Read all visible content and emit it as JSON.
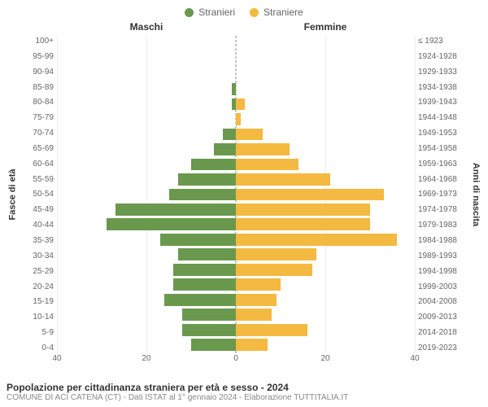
{
  "type": "population-pyramid",
  "legend": {
    "male": {
      "label": "Stranieri",
      "color": "#6a994e"
    },
    "female": {
      "label": "Straniere",
      "color": "#f4b940"
    }
  },
  "column_headers": {
    "left": "Maschi",
    "right": "Femmine"
  },
  "yaxis": {
    "left_title": "Fasce di età",
    "right_title": "Anni di nascita",
    "label_fontsize": 10,
    "title_fontsize": 11
  },
  "xaxis": {
    "max_abs": 40,
    "ticks": [
      40,
      20,
      0,
      20,
      40
    ],
    "label_fontsize": 10
  },
  "grid": {
    "color": "#f0eeee",
    "positions_pct": [
      0,
      25,
      75,
      100
    ]
  },
  "center_divider": {
    "color": "#888888",
    "style": "dashed"
  },
  "background_color": "#ffffff",
  "bars": [
    {
      "age": "100+",
      "birth": "≤ 1923",
      "male": 0,
      "female": 0
    },
    {
      "age": "95-99",
      "birth": "1924-1928",
      "male": 0,
      "female": 0
    },
    {
      "age": "90-94",
      "birth": "1929-1933",
      "male": 0,
      "female": 0
    },
    {
      "age": "85-89",
      "birth": "1934-1938",
      "male": 1,
      "female": 0
    },
    {
      "age": "80-84",
      "birth": "1939-1943",
      "male": 1,
      "female": 2
    },
    {
      "age": "75-79",
      "birth": "1944-1948",
      "male": 0,
      "female": 1
    },
    {
      "age": "70-74",
      "birth": "1949-1953",
      "male": 3,
      "female": 6
    },
    {
      "age": "65-69",
      "birth": "1954-1958",
      "male": 5,
      "female": 12
    },
    {
      "age": "60-64",
      "birth": "1959-1963",
      "male": 10,
      "female": 14
    },
    {
      "age": "55-59",
      "birth": "1964-1968",
      "male": 13,
      "female": 21
    },
    {
      "age": "50-54",
      "birth": "1969-1973",
      "male": 15,
      "female": 33
    },
    {
      "age": "45-49",
      "birth": "1974-1978",
      "male": 27,
      "female": 30
    },
    {
      "age": "40-44",
      "birth": "1979-1983",
      "male": 29,
      "female": 30
    },
    {
      "age": "35-39",
      "birth": "1984-1988",
      "male": 17,
      "female": 36
    },
    {
      "age": "30-34",
      "birth": "1989-1993",
      "male": 13,
      "female": 18
    },
    {
      "age": "25-29",
      "birth": "1994-1998",
      "male": 14,
      "female": 17
    },
    {
      "age": "20-24",
      "birth": "1999-2003",
      "male": 14,
      "female": 10
    },
    {
      "age": "15-19",
      "birth": "2004-2008",
      "male": 16,
      "female": 9
    },
    {
      "age": "10-14",
      "birth": "2009-2013",
      "male": 12,
      "female": 8
    },
    {
      "age": "5-9",
      "birth": "2014-2018",
      "male": 12,
      "female": 16
    },
    {
      "age": "0-4",
      "birth": "2019-2023",
      "male": 10,
      "female": 7
    }
  ],
  "footer": {
    "title": "Popolazione per cittadinanza straniera per età e sesso - 2024",
    "subtitle": "COMUNE DI ACI CATENA (CT) - Dati ISTAT al 1° gennaio 2024 - Elaborazione TUTTITALIA.IT",
    "title_fontsize": 12,
    "subtitle_fontsize": 10,
    "title_color": "#333333",
    "subtitle_color": "#888888"
  }
}
